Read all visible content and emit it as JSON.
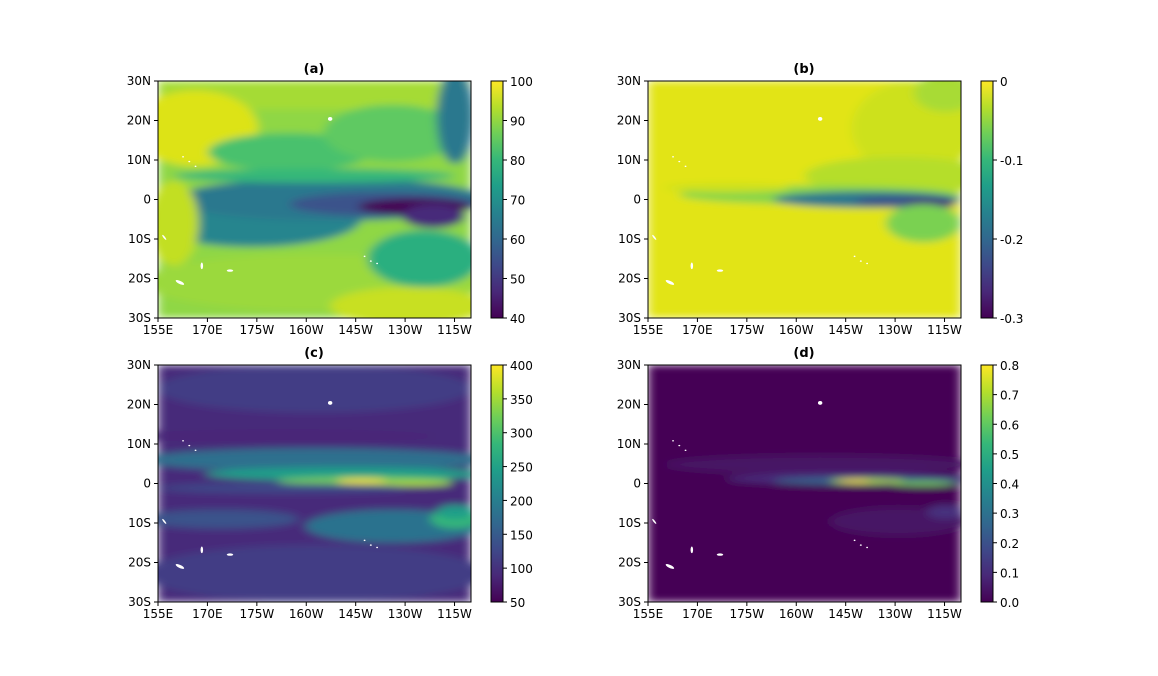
{
  "colormap": {
    "name": "viridis",
    "stops": [
      "#440154",
      "#482878",
      "#3e4989",
      "#31688e",
      "#26828e",
      "#1f9e89",
      "#35b779",
      "#6ece58",
      "#b5de2b",
      "#fde725"
    ]
  },
  "chart_data": [
    {
      "type": "heatmap",
      "title": "(a)",
      "xticks": [
        "155E",
        "170E",
        "175W",
        "160W",
        "145W",
        "130W",
        "115W"
      ],
      "yticks": [
        "30N",
        "20N",
        "10N",
        "0",
        "10S",
        "20S",
        "30S"
      ],
      "xlim": [
        "155E",
        "110W"
      ],
      "ylim": [
        "30S",
        "30N"
      ],
      "colorbar": {
        "min": 40,
        "max": 100,
        "ticks": [
          "100",
          "90",
          "80",
          "70",
          "60",
          "50",
          "40"
        ]
      },
      "field_description": "high (90-100) in subtropics, minimum (~40-50) along equatorial eastern Pacific"
    },
    {
      "type": "heatmap",
      "title": "(b)",
      "xticks": [
        "155E",
        "170E",
        "175W",
        "160W",
        "145W",
        "130W",
        "115W"
      ],
      "yticks": [
        "30N",
        "20N",
        "10N",
        "0",
        "10S",
        "20S",
        "30S"
      ],
      "xlim": [
        "155E",
        "110W"
      ],
      "ylim": [
        "30S",
        "30N"
      ],
      "colorbar": {
        "min": -0.3,
        "max": 0,
        "ticks": [
          "0",
          "-0.1",
          "-0.2",
          "-0.3"
        ]
      },
      "field_description": "near 0 almost everywhere, minimum (~-0.25) along equatorial eastern Pacific"
    },
    {
      "type": "heatmap",
      "title": "(c)",
      "xticks": [
        "155E",
        "170E",
        "175W",
        "160W",
        "145W",
        "130W",
        "115W"
      ],
      "yticks": [
        "30N",
        "20N",
        "10N",
        "0",
        "10S",
        "20S",
        "30S"
      ],
      "xlim": [
        "155E",
        "110W"
      ],
      "ylim": [
        "30S",
        "30N"
      ],
      "colorbar": {
        "min": 50,
        "max": 400,
        "ticks": [
          "400",
          "350",
          "300",
          "250",
          "200",
          "150",
          "100",
          "50"
        ]
      },
      "field_description": "background ~100, band ~200 near 5N, maximum (~400) just north of equator near 140W"
    },
    {
      "type": "heatmap",
      "title": "(d)",
      "xticks": [
        "155E",
        "170E",
        "175W",
        "160W",
        "145W",
        "130W",
        "115W"
      ],
      "yticks": [
        "30N",
        "20N",
        "10N",
        "0",
        "10S",
        "20S",
        "30S"
      ],
      "xlim": [
        "155E",
        "110W"
      ],
      "ylim": [
        "30S",
        "30N"
      ],
      "colorbar": {
        "min": 0,
        "max": 0.8,
        "ticks": [
          "0.8",
          "0.7",
          "0.6",
          "0.5",
          "0.4",
          "0.3",
          "0.2",
          "0.1",
          "0.0"
        ]
      },
      "field_description": "background ~0, maximum (~0.8) in narrow band just north of equator near 140W"
    }
  ]
}
